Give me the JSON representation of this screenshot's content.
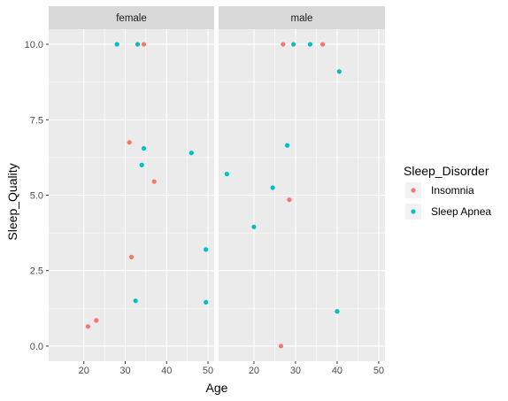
{
  "chart_data": {
    "type": "scatter",
    "facet_by": "gender",
    "panels": [
      {
        "label": "female",
        "points": [
          {
            "x": 21.0,
            "y": 0.65,
            "series": "Insomnia"
          },
          {
            "x": 23.0,
            "y": 0.85,
            "series": "Insomnia"
          },
          {
            "x": 31.5,
            "y": 2.95,
            "series": "Insomnia"
          },
          {
            "x": 31.0,
            "y": 6.75,
            "series": "Insomnia"
          },
          {
            "x": 37.0,
            "y": 5.45,
            "series": "Insomnia"
          },
          {
            "x": 34.5,
            "y": 10.0,
            "series": "Insomnia"
          },
          {
            "x": 28.0,
            "y": 10.0,
            "series": "Sleep Apnea"
          },
          {
            "x": 33.0,
            "y": 10.0,
            "series": "Sleep Apnea"
          },
          {
            "x": 34.5,
            "y": 6.55,
            "series": "Sleep Apnea"
          },
          {
            "x": 34.0,
            "y": 6.0,
            "series": "Sleep Apnea"
          },
          {
            "x": 46.0,
            "y": 6.4,
            "series": "Sleep Apnea"
          },
          {
            "x": 49.5,
            "y": 3.2,
            "series": "Sleep Apnea"
          },
          {
            "x": 32.5,
            "y": 1.5,
            "series": "Sleep Apnea"
          },
          {
            "x": 49.5,
            "y": 1.45,
            "series": "Sleep Apnea"
          }
        ]
      },
      {
        "label": "male",
        "points": [
          {
            "x": 27.0,
            "y": 10.0,
            "series": "Insomnia"
          },
          {
            "x": 36.5,
            "y": 10.0,
            "series": "Insomnia"
          },
          {
            "x": 28.5,
            "y": 4.85,
            "series": "Insomnia"
          },
          {
            "x": 26.5,
            "y": 0.0,
            "series": "Insomnia"
          },
          {
            "x": 29.5,
            "y": 10.0,
            "series": "Sleep Apnea"
          },
          {
            "x": 33.5,
            "y": 10.0,
            "series": "Sleep Apnea"
          },
          {
            "x": 40.5,
            "y": 9.1,
            "series": "Sleep Apnea"
          },
          {
            "x": 28.0,
            "y": 6.65,
            "series": "Sleep Apnea"
          },
          {
            "x": 13.5,
            "y": 5.7,
            "series": "Sleep Apnea"
          },
          {
            "x": 24.5,
            "y": 5.25,
            "series": "Sleep Apnea"
          },
          {
            "x": 20.0,
            "y": 3.95,
            "series": "Sleep Apnea"
          },
          {
            "x": 40.0,
            "y": 1.15,
            "series": "Sleep Apnea"
          }
        ]
      }
    ],
    "series": [
      {
        "name": "Insomnia",
        "color": "#F8766D"
      },
      {
        "name": "Sleep Apnea",
        "color": "#00BFC4"
      }
    ],
    "xlabel": "Age",
    "ylabel": "Sleep_Quality",
    "xlim": [
      11.5,
      51.5
    ],
    "ylim": [
      -0.5,
      10.5
    ],
    "x_ticks": [
      20,
      30,
      40,
      50
    ],
    "y_ticks": [
      0,
      2.5,
      5,
      7.5,
      10
    ],
    "y_tick_labels": [
      "0.0",
      "2.5",
      "5.0",
      "7.5",
      "10.0"
    ],
    "legend_title": "Sleep_Disorder",
    "legend_position": "right",
    "grid": true,
    "panel_background": "#EBEBEB",
    "strip_background": "#D9D9D9"
  }
}
